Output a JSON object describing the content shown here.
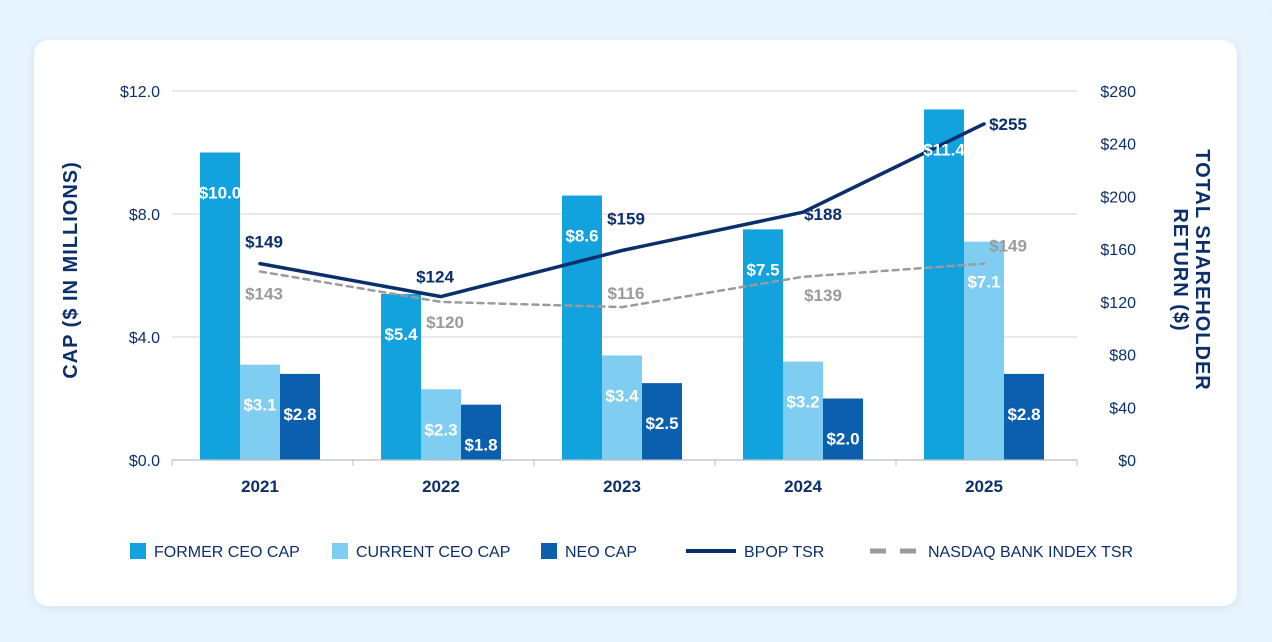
{
  "chart_data": {
    "type": "bar",
    "categories": [
      "2021",
      "2022",
      "2023",
      "2024",
      "2025"
    ],
    "series": [
      {
        "name": "FORMER CEO CAP",
        "kind": "bar",
        "axis": "left",
        "color": "#12a3df",
        "values": [
          10.0,
          5.4,
          8.6,
          7.5,
          11.4
        ],
        "labels": [
          "$10.0",
          "$5.4",
          "$8.6",
          "$7.5",
          "$11.4"
        ]
      },
      {
        "name": "CURRENT CEO CAP",
        "kind": "bar",
        "axis": "left",
        "color": "#80cdf2",
        "values": [
          3.1,
          2.3,
          3.4,
          3.2,
          7.1
        ],
        "labels": [
          "$3.1",
          "$2.3",
          "$3.4",
          "$3.2",
          "$7.1"
        ]
      },
      {
        "name": "NEO CAP",
        "kind": "bar",
        "axis": "left",
        "color": "#0b5fae",
        "values": [
          2.8,
          1.8,
          2.5,
          2.0,
          2.8
        ],
        "labels": [
          "$2.8",
          "$1.8",
          "$2.5",
          "$2.0",
          "$2.8"
        ]
      },
      {
        "name": "BPOP TSR",
        "kind": "line",
        "axis": "right",
        "color": "#0b2f6b",
        "dash": false,
        "values": [
          149,
          124,
          159,
          188,
          255
        ],
        "labels": [
          "$149",
          "$124",
          "$159",
          "$188",
          "$255"
        ]
      },
      {
        "name": "NASDAQ BANK INDEX TSR",
        "kind": "line",
        "axis": "right",
        "color": "#9b9b9b",
        "dash": true,
        "values": [
          143,
          120,
          116,
          139,
          149
        ],
        "labels": [
          "$143",
          "$120",
          "$116",
          "$139",
          "$149"
        ]
      }
    ],
    "y_left": {
      "title": "CAP ($ IN MILLIONS)",
      "min": 0,
      "max": 12,
      "ticks": [
        0,
        4,
        8,
        12
      ],
      "tick_labels": [
        "$0.0",
        "$4.0",
        "$8.0",
        "$12.0"
      ]
    },
    "y_right": {
      "title_line1": "TOTAL SHAREHOLDER",
      "title_line2": "RETURN ($)",
      "min": 0,
      "max": 280,
      "ticks": [
        0,
        40,
        80,
        120,
        160,
        200,
        240,
        280
      ],
      "tick_labels": [
        "$0",
        "$40",
        "$80",
        "$120",
        "$160",
        "$200",
        "$240",
        "$280"
      ]
    },
    "grid": true,
    "legend_position": "bottom"
  }
}
